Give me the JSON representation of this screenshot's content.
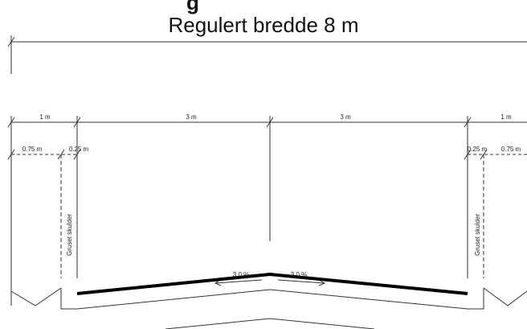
{
  "heading_fragment": "g",
  "title": "Regulert bredde 8 m",
  "dimensions": {
    "left_shoulder": "1 m",
    "left_lane": "3 m",
    "right_lane": "3 m",
    "right_shoulder": "1 m",
    "left_outer": "0.75 m",
    "left_inner": "0.25 m",
    "right_inner": "0.25 m",
    "right_outer": "0.75 m"
  },
  "labels": {
    "left_shoulder": "Gruset skulder",
    "right_shoulder": "Gruset skulder"
  },
  "slopes": {
    "left": "3.0 %",
    "right": "3.0 %"
  },
  "colors": {
    "line": "#333333",
    "asphalt": "#000000"
  }
}
